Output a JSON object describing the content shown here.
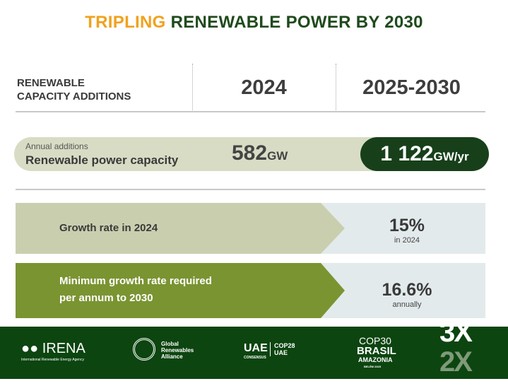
{
  "title": {
    "part1": "TRIPLING",
    "part2": "RENEWABLE POWER BY 2030"
  },
  "header": {
    "label_line1": "RENEWABLE",
    "label_line2": "CAPACITY ADDITIONS",
    "col1": "2024",
    "col2": "2025-2030"
  },
  "capacity": {
    "small_label": "Annual additions",
    "label": "Renewable power capacity",
    "value_2024": "582",
    "unit_2024": "GW",
    "value_2030": "1 122",
    "unit_2030": "GW/yr"
  },
  "rows": [
    {
      "label_line1": "Growth rate in 2024",
      "label_line2": "",
      "value": "15%",
      "sub": "in 2024"
    },
    {
      "label_line1": "Minimum growth rate required",
      "label_line2": "per annum to 2030",
      "value": "16.6%",
      "sub": "annually"
    }
  ],
  "colors": {
    "orange": "#f0a21e",
    "dark_green": "#17401a",
    "pill": "#d9dcc5",
    "row1": "#c9cfae",
    "row2": "#7a9432",
    "value_bg": "#e3eaeb",
    "footer": "#0c4510"
  },
  "footer": {
    "irena": "IRENA",
    "irena_sub": "International Renewable Energy Agency",
    "gra": "Global Renewables Alliance",
    "uae": "UAE",
    "uae_sub": "CONSENSUS",
    "cop28": "COP28 UAE",
    "cop30": "COP30",
    "brasil": "BRASIL",
    "amazonia": "AMAZONIA",
    "belem": "BELÉM 2025",
    "mark": "3X"
  }
}
